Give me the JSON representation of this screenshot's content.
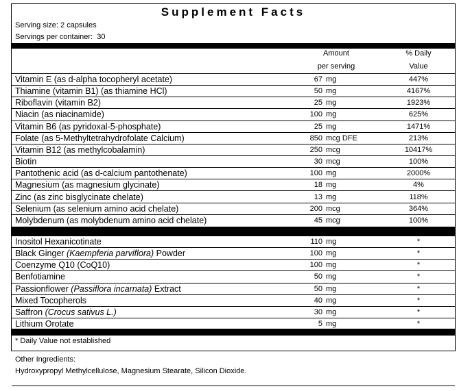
{
  "title": "Supplement Facts",
  "serving_size": "Serving size: 2 capsules",
  "servings_per_container": "Servings per container:  30",
  "header": {
    "amount": [
      "Amount",
      "per serving"
    ],
    "daily_value": [
      "% Daily",
      "Value"
    ]
  },
  "groups": [
    {
      "rows": [
        {
          "name": [
            "Vitamin E (as d-alpha tocopheryl acetate)"
          ],
          "amount": 67,
          "unit": "mg",
          "dv": "447%"
        },
        {
          "name": [
            "Thiamine (vitamin B1) (as thiamine HCl)"
          ],
          "amount": 50,
          "unit": "mg",
          "dv": "4167%"
        },
        {
          "name": [
            "Riboflavin (vitamin B2)"
          ],
          "amount": 25,
          "unit": "mg",
          "dv": "1923%"
        },
        {
          "name": [
            "Niacin (as niacinamide)"
          ],
          "amount": 100,
          "unit": "mg",
          "dv": "625%"
        },
        {
          "name": [
            "Vitamin B6 (as pyridoxal-5-phosphate)"
          ],
          "amount": 25,
          "unit": "mg",
          "dv": "1471%"
        },
        {
          "name": [
            "Folate (as 5-Methyltetrahydrofolate Calcium)"
          ],
          "amount": 850,
          "unit": "mcg DFE",
          "dv": "213%"
        },
        {
          "name": [
            "Vitamin B12 (as methylcobalamin)"
          ],
          "amount": 250,
          "unit": "mcg",
          "dv": "10417%"
        },
        {
          "name": [
            "Biotin"
          ],
          "amount": 30,
          "unit": "mcg",
          "dv": "100%"
        },
        {
          "name": [
            "Pantothenic acid (as d-calcium pantothenate)"
          ],
          "amount": 100,
          "unit": "mg",
          "dv": "2000%"
        },
        {
          "name": [
            "Magnesium (as magnesium glycinate)"
          ],
          "amount": 18,
          "unit": "mg",
          "dv": "4%"
        },
        {
          "name": [
            "Zinc (as zinc bisglycinate chelate)"
          ],
          "amount": 13,
          "unit": "mg",
          "dv": "118%"
        },
        {
          "name": [
            "Selenium (as selenium amino acid chelate)"
          ],
          "amount": 200,
          "unit": "mcg",
          "dv": "364%"
        },
        {
          "name": [
            "Molybdenum (as molybdenum amino acid chelate)"
          ],
          "amount": 45,
          "unit": "mcg",
          "dv": "100%"
        }
      ]
    },
    {
      "rows": [
        {
          "name": [
            "Inositol Hexanicotinate"
          ],
          "amount": 110,
          "unit": "mg",
          "dv": "*"
        },
        {
          "name": [
            "Black Ginger ",
            {
              "text": "(Kaempferia parviflora)",
              "italic": true
            },
            " Powder"
          ],
          "amount": 100,
          "unit": "mg",
          "dv": "*"
        },
        {
          "name": [
            "Coenzyme Q10 (CoQ10)"
          ],
          "amount": 100,
          "unit": "mg",
          "dv": "*"
        },
        {
          "name": [
            "Benfotiamine"
          ],
          "amount": 50,
          "unit": "mg",
          "dv": "*"
        },
        {
          "name": [
            "Passionflower ",
            {
              "text": "(Passiflora incarnata)",
              "italic": true
            },
            " Extract"
          ],
          "amount": 50,
          "unit": "mg",
          "dv": "*"
        },
        {
          "name": [
            "Mixed Tocopherols"
          ],
          "amount": 40,
          "unit": "mg",
          "dv": "*"
        },
        {
          "name": [
            "Saffron ",
            {
              "text": "(Crocus sativus L.)",
              "italic": true
            }
          ],
          "amount": 30,
          "unit": "mg",
          "dv": "*"
        },
        {
          "name": [
            "Lithium Orotate"
          ],
          "amount": 5,
          "unit": "mg",
          "dv": "*"
        }
      ]
    }
  ],
  "footnote": "* Daily Value not established",
  "other_ingredients": {
    "label": "Other Ingredients:",
    "text": "Hydroxypropyl Methylcellulose, Magnesium Stearate, Silicon Dioxide."
  }
}
